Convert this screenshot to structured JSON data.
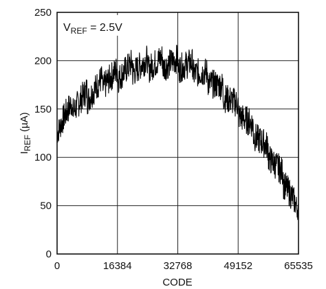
{
  "chart_data": {
    "type": "line",
    "xlabel": "CODE",
    "ylabel_main": "I",
    "ylabel_sub": "REF",
    "ylabel_unit": " (µA)",
    "annotation_main": "V",
    "annotation_sub": "REF",
    "annotation_rest": " = 2.5V",
    "xlim": [
      0,
      65535
    ],
    "ylim": [
      0,
      250
    ],
    "x_ticks": [
      0,
      16384,
      32768,
      49152,
      65535
    ],
    "x_tick_labels": [
      "0",
      "16384",
      "32768",
      "49152",
      "65535"
    ],
    "y_ticks": [
      0,
      50,
      100,
      150,
      200,
      250
    ],
    "y_tick_labels": [
      "0",
      "50",
      "100",
      "150",
      "200",
      "250"
    ],
    "grid": true,
    "series": [
      {
        "x": [
          0,
          2000,
          4000,
          6000,
          8000,
          10000,
          12000,
          14000,
          16000,
          18000,
          20000,
          22000,
          24000,
          26000,
          28000,
          30000,
          32000,
          34000,
          36000,
          38000,
          40000,
          42000,
          44000,
          46000,
          48000,
          50000,
          52000,
          54000,
          56000,
          58000,
          60000,
          62000,
          64000,
          65535
        ],
        "y": [
          130,
          143,
          151,
          158,
          164,
          170,
          176,
          181,
          185,
          189,
          192,
          194,
          196,
          197,
          198,
          198,
          197,
          196,
          194,
          190,
          185,
          179,
          172,
          164,
          155,
          145,
          135,
          124,
          113,
          101,
          88,
          74,
          57,
          38
        ],
        "spread": [
          25,
          30,
          30,
          30,
          30,
          30,
          30,
          30,
          30,
          30,
          30,
          30,
          30,
          30,
          30,
          30,
          30,
          30,
          30,
          30,
          30,
          30,
          30,
          30,
          30,
          30,
          30,
          30,
          30,
          30,
          30,
          30,
          30,
          20
        ]
      }
    ]
  }
}
